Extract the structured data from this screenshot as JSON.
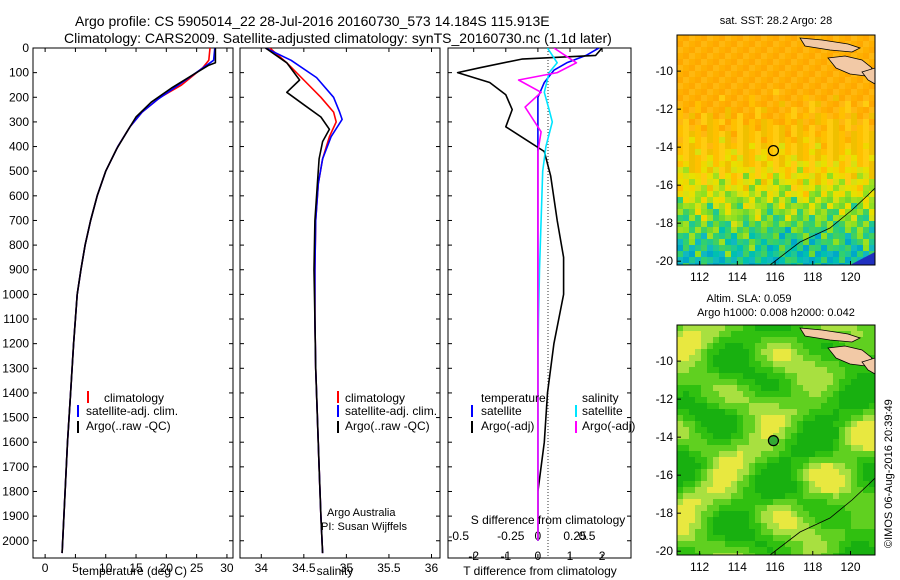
{
  "header": {
    "line1": "Argo profile: CS 5905014_22 28-Jul-2016 20160730_573 14.184S 115.913E",
    "line2": "Climatology: CARS2009. Satellite-adjusted climatology: synTS_20160730.nc (1.1d later)"
  },
  "colors": {
    "climatology": "#ff0000",
    "satellite": "#0000ff",
    "argo": "#000000",
    "sat_salinity": "#00e5ff",
    "argo_salinity_adj": "#ff00ff"
  },
  "chart_data": [
    {
      "type": "line",
      "xlabel": "temperature (deg C)",
      "ylabel": "",
      "xlim": [
        -2,
        31
      ],
      "ylim": [
        2070,
        0
      ],
      "y_inverted": true,
      "x_ticks": [
        "0",
        "5",
        "10",
        "15",
        "20",
        "25",
        "30"
      ],
      "y_ticks": [
        "0",
        "100",
        "200",
        "300",
        "400",
        "500",
        "600",
        "700",
        "800",
        "900",
        "1000",
        "1100",
        "1200",
        "1300",
        "1400",
        "1500",
        "1600",
        "1700",
        "1800",
        "1900",
        "2000"
      ],
      "legend": [
        "climatology",
        "satellite-adj. clim.",
        "Argo(..raw -QC)"
      ],
      "legend_position": "lower-middle",
      "series": [
        {
          "name": "climatology",
          "points": [
            [
              27.2,
              0
            ],
            [
              27.0,
              50
            ],
            [
              26.0,
              80
            ],
            [
              22.5,
              150
            ],
            [
              19.0,
              200
            ],
            [
              16.0,
              260
            ],
            [
              14.0,
              320
            ],
            [
              12.0,
              400
            ],
            [
              10.0,
              500
            ],
            [
              8.6,
              600
            ],
            [
              7.5,
              700
            ],
            [
              6.6,
              800
            ],
            [
              5.9,
              900
            ],
            [
              5.3,
              1000
            ],
            [
              4.7,
              1200
            ],
            [
              4.2,
              1400
            ],
            [
              3.7,
              1600
            ],
            [
              3.3,
              1800
            ],
            [
              2.9,
              2000
            ],
            [
              2.8,
              2050
            ]
          ]
        },
        {
          "name": "satellite-adj. clim.",
          "points": [
            [
              28.0,
              0
            ],
            [
              27.8,
              50
            ],
            [
              25.5,
              90
            ],
            [
              22.0,
              150
            ],
            [
              18.5,
              210
            ],
            [
              16.0,
              260
            ],
            [
              14.0,
              320
            ],
            [
              12.0,
              400
            ],
            [
              10.0,
              500
            ],
            [
              8.6,
              600
            ],
            [
              7.5,
              700
            ],
            [
              6.6,
              800
            ],
            [
              5.9,
              900
            ],
            [
              5.3,
              1000
            ],
            [
              4.7,
              1200
            ],
            [
              4.2,
              1400
            ],
            [
              3.7,
              1600
            ],
            [
              3.3,
              1800
            ],
            [
              2.9,
              2000
            ],
            [
              2.8,
              2050
            ]
          ]
        },
        {
          "name": "Argo(..raw -QC)",
          "points": [
            [
              28.1,
              0
            ],
            [
              28.1,
              60
            ],
            [
              27.0,
              70
            ],
            [
              25.0,
              100
            ],
            [
              21.0,
              160
            ],
            [
              17.5,
              220
            ],
            [
              15.0,
              280
            ],
            [
              13.5,
              340
            ],
            [
              11.8,
              410
            ],
            [
              10.0,
              500
            ],
            [
              8.6,
              600
            ],
            [
              7.5,
              700
            ],
            [
              6.6,
              800
            ],
            [
              5.9,
              900
            ],
            [
              5.3,
              1000
            ],
            [
              4.7,
              1200
            ],
            [
              4.2,
              1400
            ],
            [
              3.7,
              1600
            ],
            [
              3.3,
              1800
            ],
            [
              2.9,
              2000
            ],
            [
              2.8,
              2050
            ]
          ]
        }
      ]
    },
    {
      "type": "line",
      "xlabel": "salinity",
      "xlim": [
        33.75,
        36.1
      ],
      "ylim": [
        2070,
        0
      ],
      "y_inverted": true,
      "x_ticks": [
        "34",
        "34.5",
        "35",
        "35.5",
        "36"
      ],
      "legend": [
        "climatology",
        "satellite-adj. clim.",
        "Argo(..raw -QC)"
      ],
      "legend_position": "lower-middle",
      "annotation": [
        "Argo Australia",
        "PI: Susan Wijffels"
      ],
      "series": [
        {
          "name": "climatology",
          "points": [
            [
              34.1,
              0
            ],
            [
              34.3,
              60
            ],
            [
              34.5,
              130
            ],
            [
              34.7,
              200
            ],
            [
              34.85,
              260
            ],
            [
              34.88,
              300
            ],
            [
              34.8,
              360
            ],
            [
              34.72,
              450
            ],
            [
              34.67,
              550
            ],
            [
              34.64,
              700
            ],
            [
              34.63,
              900
            ],
            [
              34.63,
              1100
            ],
            [
              34.64,
              1300
            ],
            [
              34.66,
              1500
            ],
            [
              34.68,
              1700
            ],
            [
              34.7,
              1900
            ],
            [
              34.72,
              2050
            ]
          ]
        },
        {
          "name": "satellite-adj. clim.",
          "points": [
            [
              34.05,
              0
            ],
            [
              34.35,
              50
            ],
            [
              34.65,
              120
            ],
            [
              34.85,
              200
            ],
            [
              34.92,
              260
            ],
            [
              34.95,
              290
            ],
            [
              34.82,
              360
            ],
            [
              34.72,
              450
            ],
            [
              34.67,
              550
            ],
            [
              34.64,
              700
            ],
            [
              34.63,
              900
            ],
            [
              34.63,
              1100
            ],
            [
              34.64,
              1300
            ],
            [
              34.66,
              1500
            ],
            [
              34.68,
              1700
            ],
            [
              34.7,
              1900
            ],
            [
              34.72,
              2050
            ]
          ]
        },
        {
          "name": "Argo(..raw -QC)",
          "points": [
            [
              34.05,
              0
            ],
            [
              34.3,
              60
            ],
            [
              34.45,
              130
            ],
            [
              34.3,
              180
            ],
            [
              34.5,
              230
            ],
            [
              34.7,
              280
            ],
            [
              34.8,
              330
            ],
            [
              34.72,
              380
            ],
            [
              34.68,
              450
            ],
            [
              34.66,
              550
            ],
            [
              34.63,
              700
            ],
            [
              34.62,
              900
            ],
            [
              34.63,
              1100
            ],
            [
              34.64,
              1300
            ],
            [
              34.66,
              1500
            ],
            [
              34.68,
              1700
            ],
            [
              34.7,
              1900
            ],
            [
              34.72,
              2050
            ]
          ]
        }
      ]
    },
    {
      "type": "line",
      "xlabel": "T difference from climatology",
      "title_bottom": "S difference from climatology",
      "xlim": [
        -2.8,
        2.9
      ],
      "ylim": [
        2070,
        0
      ],
      "y_inverted": true,
      "x_ticks_T": [
        "-2",
        "-1",
        "0",
        "1",
        "2"
      ],
      "x_ticks_S": [
        "-0.5",
        "-0.25",
        "0",
        "0.25",
        "0.5"
      ],
      "legend_temperature": {
        "heading": "temperature",
        "items": [
          "satellite",
          "Argo(-adj)"
        ]
      },
      "legend_salinity": {
        "heading": "salinity",
        "items": [
          "satellite",
          "Argo(-adj)"
        ]
      },
      "series": [
        {
          "name": "satellite",
          "points": [
            [
              1.9,
              0
            ],
            [
              1.5,
              30
            ],
            [
              0.9,
              60
            ],
            [
              0.5,
              90
            ],
            [
              0.2,
              140
            ],
            [
              0.0,
              200
            ],
            [
              0.0,
              400
            ],
            [
              0.0,
              700
            ],
            [
              0.0,
              1000
            ],
            [
              0.0,
              1300
            ],
            [
              0.0,
              1600
            ],
            [
              0.0,
              2000
            ]
          ]
        },
        {
          "name": "Argo(-adj)",
          "points": [
            [
              2.0,
              0
            ],
            [
              1.8,
              30
            ],
            [
              -0.5,
              45
            ],
            [
              -1.8,
              80
            ],
            [
              -2.5,
              100
            ],
            [
              -1.5,
              140
            ],
            [
              -1.0,
              190
            ],
            [
              -0.8,
              250
            ],
            [
              -1.0,
              320
            ],
            [
              -0.4,
              370
            ],
            [
              0.2,
              420
            ],
            [
              0.4,
              520
            ],
            [
              0.6,
              700
            ],
            [
              0.8,
              850
            ],
            [
              0.8,
              1000
            ],
            [
              0.5,
              1200
            ],
            [
              0.3,
              1400
            ],
            [
              0.2,
              1600
            ],
            [
              0.0,
              1800
            ],
            [
              0.0,
              2000
            ]
          ]
        },
        {
          "name": "satellite",
          "points": [
            [
              0.3,
              0
            ],
            [
              0.6,
              60
            ],
            [
              0.35,
              100
            ],
            [
              0.2,
              180
            ],
            [
              0.35,
              250
            ],
            [
              0.45,
              300
            ],
            [
              0.25,
              400
            ],
            [
              0.15,
              500
            ],
            [
              0.1,
              700
            ],
            [
              0.05,
              900
            ],
            [
              0.02,
              1100
            ],
            [
              0.0,
              1300
            ],
            [
              0.0,
              1600
            ],
            [
              0.0,
              2000
            ]
          ]
        },
        {
          "name": "Argo(-adj)",
          "points": [
            [
              0.5,
              0
            ],
            [
              1.2,
              60
            ],
            [
              0.6,
              100
            ],
            [
              -0.6,
              130
            ],
            [
              0.1,
              180
            ],
            [
              -0.4,
              240
            ],
            [
              -0.2,
              280
            ],
            [
              0.1,
              340
            ],
            [
              0.0,
              420
            ],
            [
              0.0,
              600
            ],
            [
              0.0,
              900
            ],
            [
              0.0,
              1200
            ],
            [
              0.0,
              1500
            ],
            [
              0.0,
              1800
            ],
            [
              0.0,
              2000
            ]
          ]
        }
      ]
    },
    {
      "type": "heatmap",
      "title": "sat. SST: 28.2  Argo: 28",
      "xlim": [
        110.8,
        121.3
      ],
      "ylim": [
        -20.2,
        -8.1
      ],
      "x_ticks": [
        "112",
        "114",
        "116",
        "118",
        "120"
      ],
      "y_ticks": [
        "-10",
        "-12",
        "-14",
        "-16",
        "-18",
        "-20"
      ],
      "marker": {
        "lon": 115.913,
        "lat": -14.184
      }
    },
    {
      "type": "heatmap",
      "title": "Altim. SLA: 0.059",
      "subtitle": "Argo h1000: 0.008 h2000: 0.042",
      "xlim": [
        110.8,
        121.3
      ],
      "ylim": [
        -20.2,
        -8.1
      ],
      "x_ticks": [
        "112",
        "114",
        "116",
        "118",
        "120"
      ],
      "y_ticks": [
        "-10",
        "-12",
        "-14",
        "-16",
        "-18",
        "-20"
      ],
      "marker": {
        "lon": 115.913,
        "lat": -14.184
      }
    }
  ],
  "credit": "©IMOS 06-Aug-2016 20:39:49"
}
